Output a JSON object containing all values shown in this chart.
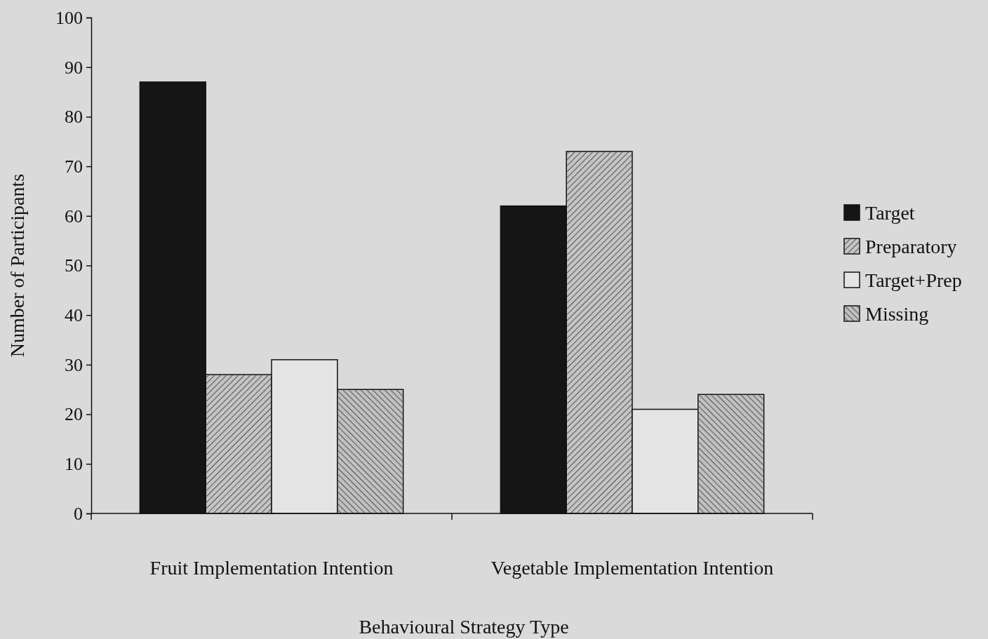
{
  "chart_data": {
    "type": "bar",
    "xlabel": "Behavioural Strategy Type",
    "ylabel": "Number of Participants",
    "categories": [
      "Fruit Implementation Intention",
      "Vegetable Implementation Intention"
    ],
    "series": [
      {
        "name": "Target",
        "color": "#151515",
        "values": [
          87,
          62
        ]
      },
      {
        "name": "Preparatory",
        "color": "#c4c4c4",
        "values": [
          28,
          73
        ]
      },
      {
        "name": "Target+Prep",
        "color": "#e4e4e4",
        "values": [
          31,
          21
        ]
      },
      {
        "name": "Missing",
        "color": "#c0c0c0",
        "values": [
          25,
          24
        ]
      }
    ],
    "ylim": [
      0,
      100
    ],
    "yticks": [
      0,
      10,
      20,
      30,
      40,
      50,
      60,
      70,
      80,
      90,
      100
    ],
    "grid": false,
    "legend": "right"
  }
}
